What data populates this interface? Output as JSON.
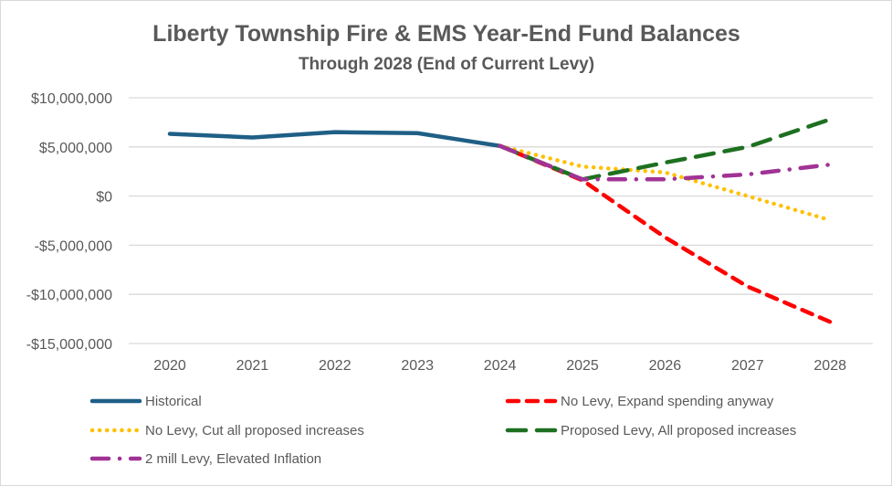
{
  "chart_data": {
    "type": "line",
    "title": "Liberty Township Fire & EMS Year-End Fund Balances",
    "subtitle": "Through 2028 (End of Current Levy)",
    "xlabel": "",
    "ylabel": "",
    "x": [
      "2020",
      "2021",
      "2022",
      "2023",
      "2024",
      "2025",
      "2026",
      "2027",
      "2028"
    ],
    "ylim": [
      -15000000,
      10000000
    ],
    "yticks": [
      10000000,
      5000000,
      0,
      -5000000,
      -10000000,
      -15000000
    ],
    "ytick_labels": [
      "$10,000,000",
      "$5,000,000",
      "$0",
      "-$5,000,000",
      "-$10,000,000",
      "-$15,000,000"
    ],
    "grid": true,
    "legend_position": "bottom",
    "series": [
      {
        "name": "Historical",
        "color": "#1f5f86",
        "style": "solid",
        "values": [
          6330000,
          5960000,
          6500000,
          6400000,
          5100000,
          null,
          null,
          null,
          null
        ]
      },
      {
        "name": "No Levy, Expand spending anyway",
        "color": "#ff0000",
        "style": "dash",
        "values": [
          null,
          null,
          null,
          null,
          5100000,
          1600000,
          -4200000,
          -9200000,
          -12800000
        ]
      },
      {
        "name": "No Levy, Cut all proposed increases",
        "color": "#ffc000",
        "style": "dot",
        "values": [
          null,
          null,
          null,
          null,
          5100000,
          3000000,
          2400000,
          0,
          -2450000
        ]
      },
      {
        "name": "Proposed Levy, All proposed increases",
        "color": "#1e7021",
        "style": "longdash",
        "values": [
          null,
          null,
          null,
          null,
          5100000,
          1700000,
          3400000,
          5000000,
          7800000
        ]
      },
      {
        "name": "2 mill Levy, Elevated Inflation",
        "color": "#a03395",
        "style": "dashdot",
        "values": [
          null,
          null,
          null,
          null,
          5100000,
          1700000,
          1700000,
          2200000,
          3200000
        ]
      }
    ]
  }
}
